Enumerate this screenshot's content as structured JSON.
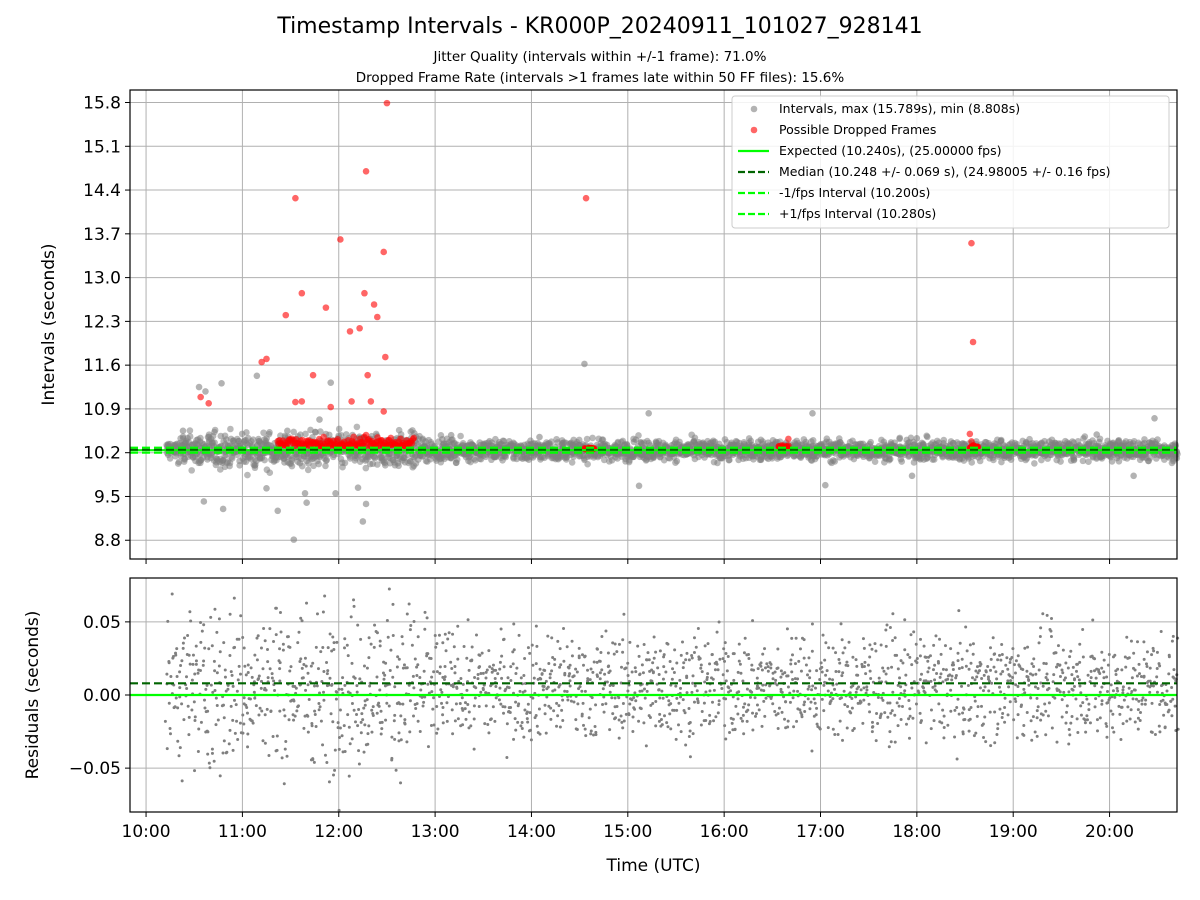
{
  "title": "Timestamp Intervals - KR000P_20240911_101027_928141",
  "subtitle_lines": [
    "Jitter Quality (intervals within +/-1 frame): 71.0%",
    "Dropped Frame Rate (intervals >1 frames late within 50 FF files): 15.6%"
  ],
  "colors": {
    "interval_points": "#808080",
    "dropped_points": "#ff0000",
    "expected_line": "#00ff00",
    "median_line": "#006400",
    "fps_interval_lines": "#00ff00",
    "residual_points": "#808080",
    "grid": "#b0b0b0"
  },
  "chart_data": [
    {
      "type": "scatter",
      "panel": "intervals",
      "xlabel": "",
      "ylabel": "Intervals (seconds)",
      "x_axis": "time (UTC)",
      "xlim": [
        "09:50",
        "20:42"
      ],
      "ylim": [
        8.5,
        16.0
      ],
      "yticks": [
        8.8,
        9.5,
        10.2,
        10.9,
        11.6,
        12.3,
        13.0,
        13.7,
        14.4,
        15.1,
        15.8
      ],
      "ytick_labels": [
        "8.8",
        "9.5",
        "10.2",
        "10.9",
        "11.6",
        "12.3",
        "13.0",
        "13.7",
        "14.4",
        "15.1",
        "15.8"
      ],
      "grid": true,
      "legend_position": "top-right",
      "series": [
        {
          "name": "Intervals, max (15.789s), min (8.808s)",
          "kind": "scatter",
          "color": "#808080",
          "points": [
            [
              "10:33",
              11.25
            ],
            [
              "10:37",
              11.18
            ],
            [
              "10:47",
              11.31
            ],
            [
              "11:09",
              11.43
            ],
            [
              "11:28",
              10.55
            ],
            [
              "11:55",
              11.32
            ],
            [
              "14:33",
              11.62
            ],
            [
              "15:13",
              10.83
            ],
            [
              "16:55",
              10.83
            ],
            [
              "10:36",
              9.42
            ],
            [
              "10:48",
              9.3
            ],
            [
              "11:22",
              9.27
            ],
            [
              "11:32",
              8.81
            ],
            [
              "11:39",
              9.55
            ],
            [
              "11:58",
              9.55
            ],
            [
              "12:15",
              9.1
            ],
            [
              "12:17",
              9.38
            ],
            [
              "15:07",
              9.67
            ],
            [
              "17:03",
              9.68
            ],
            [
              "17:57",
              9.83
            ],
            [
              "20:15",
              9.83
            ],
            [
              "11:15",
              9.63
            ],
            [
              "11:40",
              9.4
            ],
            [
              "12:12",
              9.64
            ],
            [
              "10:23",
              10.55
            ],
            [
              "11:48",
              10.73
            ],
            [
              "13:10",
              10.48
            ],
            [
              "14:05",
              10.45
            ],
            [
              "16:08",
              10.37
            ],
            [
              "18:00",
              10.43
            ],
            [
              "19:52",
              10.49
            ],
            [
              "20:28",
              10.75
            ]
          ],
          "band": {
            "center": 10.24,
            "spread": 0.18,
            "from": "10:12",
            "to": "20:42"
          }
        },
        {
          "name": "Possible Dropped Frames",
          "kind": "scatter",
          "color": "#ff0000",
          "points": [
            [
              "12:30",
              15.79
            ],
            [
              "12:17",
              14.7
            ],
            [
              "11:33",
              14.27
            ],
            [
              "14:34",
              14.27
            ],
            [
              "18:34",
              13.55
            ],
            [
              "12:01",
              13.61
            ],
            [
              "12:28",
              13.41
            ],
            [
              "11:37",
              12.75
            ],
            [
              "12:16",
              12.75
            ],
            [
              "11:52",
              12.52
            ],
            [
              "12:22",
              12.57
            ],
            [
              "11:27",
              12.4
            ],
            [
              "12:24",
              12.37
            ],
            [
              "12:07",
              12.14
            ],
            [
              "12:13",
              12.19
            ],
            [
              "11:12",
              11.65
            ],
            [
              "11:15",
              11.7
            ],
            [
              "12:29",
              11.73
            ],
            [
              "18:35",
              11.97
            ],
            [
              "11:44",
              11.44
            ],
            [
              "12:18",
              11.44
            ],
            [
              "10:34",
              11.09
            ],
            [
              "10:39",
              10.99
            ],
            [
              "11:33",
              11.01
            ],
            [
              "11:37",
              11.02
            ],
            [
              "12:08",
              11.02
            ],
            [
              "12:20",
              11.02
            ],
            [
              "11:55",
              10.93
            ],
            [
              "12:28",
              10.86
            ],
            [
              "18:34",
              10.38
            ],
            [
              "18:33",
              10.5
            ],
            [
              "16:40",
              10.42
            ]
          ],
          "clusters": [
            {
              "from": "11:22",
              "to": "12:47",
              "center": 10.32,
              "spread": 0.16
            },
            {
              "from": "14:33",
              "to": "14:39",
              "center": 10.26,
              "spread": 0.03
            },
            {
              "from": "16:34",
              "to": "16:40",
              "center": 10.28,
              "spread": 0.05
            },
            {
              "from": "18:33",
              "to": "18:38",
              "center": 10.28,
              "spread": 0.05
            }
          ]
        },
        {
          "name": "Expected (10.240s), (25.00000 fps)",
          "kind": "hline",
          "y": 10.24,
          "color": "#00ff00",
          "style": "solid"
        },
        {
          "name": "Median (10.248 +/- 0.069 s), (24.98005 +/- 0.16 fps)",
          "kind": "hline",
          "y": 10.248,
          "color": "#006400",
          "style": "dashed"
        },
        {
          "name": "-1/fps Interval (10.200s)",
          "kind": "hline",
          "y": 10.2,
          "color": "#00ff00",
          "style": "dashed"
        },
        {
          "name": "+1/fps Interval (10.280s)",
          "kind": "hline",
          "y": 10.28,
          "color": "#00ff00",
          "style": "dashed"
        }
      ]
    },
    {
      "type": "scatter",
      "panel": "residuals",
      "xlabel": "Time (UTC)",
      "ylabel": "Residuals (seconds)",
      "xlim": [
        "09:50",
        "20:42"
      ],
      "ylim": [
        -0.08,
        0.08
      ],
      "yticks": [
        -0.05,
        0.0,
        0.05
      ],
      "ytick_labels": [
        "−0.05",
        "0.00",
        "0.05"
      ],
      "xticks": [
        "10:00",
        "11:00",
        "12:00",
        "13:00",
        "14:00",
        "15:00",
        "16:00",
        "17:00",
        "18:00",
        "19:00",
        "20:00"
      ],
      "grid": true,
      "series": [
        {
          "name": "",
          "kind": "scatter",
          "color": "#808080",
          "from": "10:12",
          "to": "20:42",
          "spread": 0.08
        },
        {
          "name": "",
          "kind": "hline",
          "y": 0.0,
          "color": "#00ff00",
          "style": "solid"
        },
        {
          "name": "",
          "kind": "hline",
          "y": 0.008,
          "color": "#006400",
          "style": "dashed"
        }
      ]
    }
  ]
}
